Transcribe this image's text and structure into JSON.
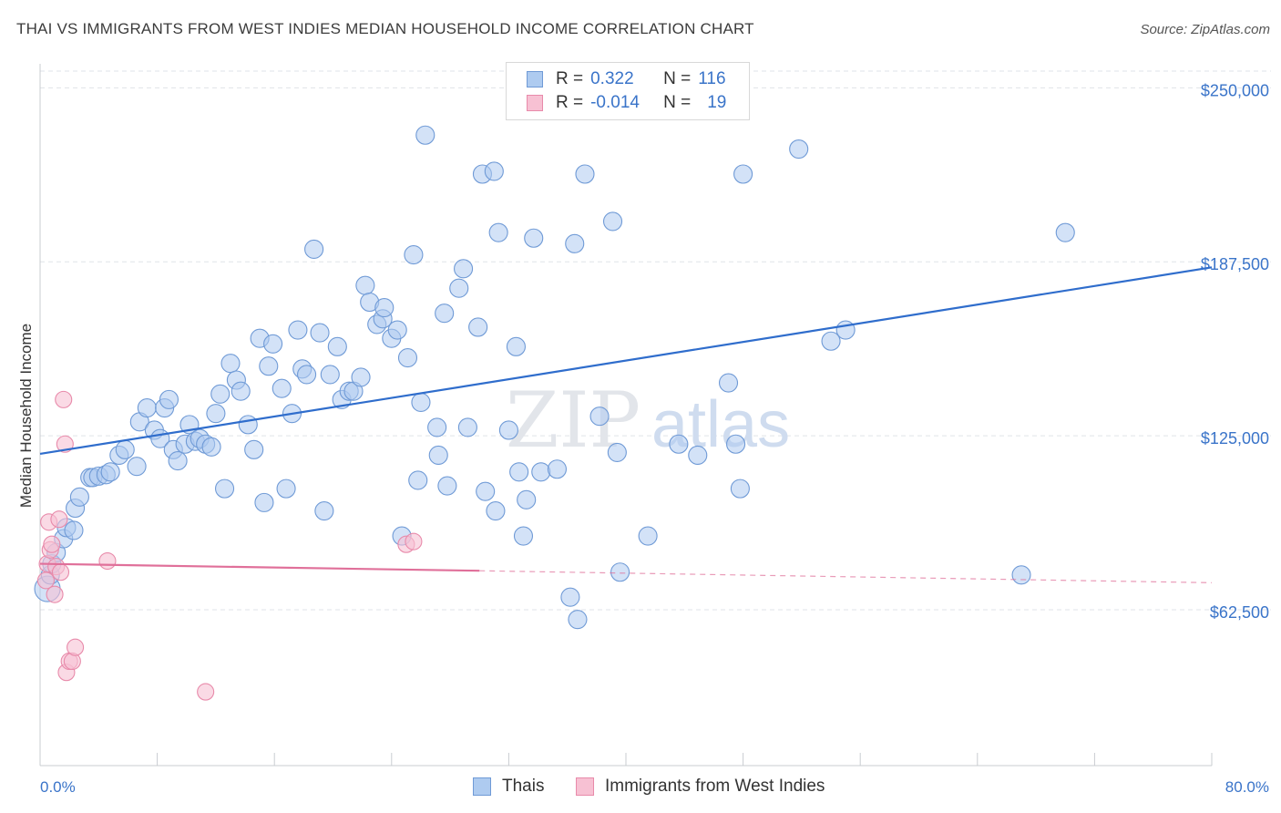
{
  "title": "THAI VS IMMIGRANTS FROM WEST INDIES MEDIAN HOUSEHOLD INCOME CORRELATION CHART",
  "source": "Source: ZipAtlas.com",
  "watermark": {
    "zip": "ZIP",
    "atlas": "atlas"
  },
  "colors": {
    "thai_fill": "#aecbf0",
    "thai_stroke": "#6f9ad6",
    "thai_line": "#2f6dcc",
    "wi_fill": "#f7c1d3",
    "wi_stroke": "#e88aaa",
    "wi_line": "#e0709a",
    "axis_label": "#3a74c9",
    "grid": "#dfe3e8"
  },
  "legend": {
    "rows": [
      {
        "r_label": "R =",
        "r_value": "0.322",
        "n_label": "N =",
        "n_value": "116"
      },
      {
        "r_label": "R =",
        "r_value": "-0.014",
        "n_label": "N =",
        "n_value": "19"
      }
    ]
  },
  "bottom_legend": {
    "thai": "Thais",
    "wi": "Immigrants from West Indies"
  },
  "chart_data": {
    "type": "scatter",
    "ylabel": "Median Household Income",
    "xlabel": "",
    "xlim": [
      0,
      80
    ],
    "ylim": [
      6500,
      256000
    ],
    "x_tick_labels": {
      "min": "0.0%",
      "max": "80.0%"
    },
    "y_ticks": [
      62500,
      125000,
      187500,
      250000
    ],
    "y_tick_labels": [
      "$62,500",
      "$125,000",
      "$187,500",
      "$250,000"
    ],
    "grid": true,
    "series": [
      {
        "name": "Thais",
        "trend": {
          "x": [
            0,
            80
          ],
          "y": [
            118500,
            185500
          ]
        },
        "points": [
          [
            0.5,
            70000
          ],
          [
            0.7,
            75000
          ],
          [
            0.8,
            79000
          ],
          [
            1.1,
            83000
          ],
          [
            1.6,
            88000
          ],
          [
            1.8,
            92000
          ],
          [
            2.3,
            91000
          ],
          [
            2.4,
            99000
          ],
          [
            2.7,
            103000
          ],
          [
            3.4,
            110000
          ],
          [
            3.6,
            110000
          ],
          [
            4.0,
            110500
          ],
          [
            4.5,
            111000
          ],
          [
            4.8,
            112000
          ],
          [
            5.4,
            118000
          ],
          [
            5.8,
            120000
          ],
          [
            6.6,
            114000
          ],
          [
            6.8,
            130000
          ],
          [
            7.3,
            135000
          ],
          [
            7.8,
            127000
          ],
          [
            8.2,
            124000
          ],
          [
            8.5,
            135000
          ],
          [
            8.8,
            138000
          ],
          [
            9.1,
            120000
          ],
          [
            9.4,
            116000
          ],
          [
            9.9,
            122000
          ],
          [
            10.2,
            129000
          ],
          [
            10.6,
            123000
          ],
          [
            10.9,
            124000
          ],
          [
            11.3,
            122000
          ],
          [
            11.7,
            121000
          ],
          [
            12.0,
            133000
          ],
          [
            12.3,
            140000
          ],
          [
            12.6,
            106000
          ],
          [
            13.0,
            151000
          ],
          [
            13.4,
            145000
          ],
          [
            13.7,
            141000
          ],
          [
            14.2,
            129000
          ],
          [
            14.6,
            120000
          ],
          [
            15.0,
            160000
          ],
          [
            15.3,
            101000
          ],
          [
            15.6,
            150000
          ],
          [
            15.9,
            158000
          ],
          [
            16.5,
            142000
          ],
          [
            16.8,
            106000
          ],
          [
            17.2,
            133000
          ],
          [
            17.6,
            163000
          ],
          [
            17.9,
            149000
          ],
          [
            18.2,
            147000
          ],
          [
            18.7,
            192000
          ],
          [
            19.1,
            162000
          ],
          [
            19.4,
            98000
          ],
          [
            19.8,
            147000
          ],
          [
            20.3,
            157000
          ],
          [
            20.6,
            138000
          ],
          [
            21.1,
            141000
          ],
          [
            21.4,
            141000
          ],
          [
            21.9,
            146000
          ],
          [
            22.2,
            179000
          ],
          [
            22.5,
            173000
          ],
          [
            23.0,
            165000
          ],
          [
            23.4,
            167000
          ],
          [
            23.5,
            171000
          ],
          [
            24.0,
            160000
          ],
          [
            24.4,
            163000
          ],
          [
            24.7,
            89000
          ],
          [
            25.1,
            153000
          ],
          [
            25.5,
            190000
          ],
          [
            25.8,
            109000
          ],
          [
            26.0,
            137000
          ],
          [
            26.3,
            233000
          ],
          [
            27.1,
            128000
          ],
          [
            27.2,
            118000
          ],
          [
            27.6,
            169000
          ],
          [
            27.8,
            107000
          ],
          [
            28.6,
            178000
          ],
          [
            28.9,
            185000
          ],
          [
            29.2,
            128000
          ],
          [
            29.9,
            164000
          ],
          [
            30.2,
            219000
          ],
          [
            30.4,
            105000
          ],
          [
            31.0,
            220000
          ],
          [
            31.1,
            98000
          ],
          [
            31.3,
            198000
          ],
          [
            32.0,
            127000
          ],
          [
            32.5,
            157000
          ],
          [
            32.7,
            112000
          ],
          [
            33.0,
            89000
          ],
          [
            33.2,
            102000
          ],
          [
            33.7,
            196000
          ],
          [
            34.2,
            112000
          ],
          [
            35.3,
            113000
          ],
          [
            36.2,
            67000
          ],
          [
            36.5,
            194000
          ],
          [
            36.7,
            59000
          ],
          [
            37.2,
            219000
          ],
          [
            38.2,
            132000
          ],
          [
            39.1,
            202000
          ],
          [
            39.4,
            119000
          ],
          [
            39.6,
            76000
          ],
          [
            41.5,
            89000
          ],
          [
            43.6,
            122000
          ],
          [
            44.9,
            118000
          ],
          [
            47.0,
            144000
          ],
          [
            47.5,
            122000
          ],
          [
            47.8,
            106000
          ],
          [
            48.0,
            219000
          ],
          [
            51.8,
            228000
          ],
          [
            54.0,
            159000
          ],
          [
            55.0,
            163000
          ],
          [
            67.0,
            75000
          ],
          [
            70.0,
            198000
          ]
        ]
      },
      {
        "name": "Immigrants from West Indies",
        "trend": {
          "x": [
            0,
            30
          ],
          "y": [
            79000,
            76500
          ]
        },
        "trend_dashed": {
          "x": [
            30,
            80
          ],
          "y": [
            76500,
            72200
          ]
        },
        "points": [
          [
            0.4,
            73000
          ],
          [
            0.5,
            79000
          ],
          [
            0.6,
            94000
          ],
          [
            0.7,
            84000
          ],
          [
            0.8,
            86000
          ],
          [
            1.0,
            68000
          ],
          [
            1.1,
            78000
          ],
          [
            1.3,
            95000
          ],
          [
            1.4,
            76000
          ],
          [
            1.6,
            138000
          ],
          [
            1.7,
            122000
          ],
          [
            1.8,
            40000
          ],
          [
            2.0,
            44000
          ],
          [
            2.2,
            44000
          ],
          [
            2.4,
            49000
          ],
          [
            4.6,
            80000
          ],
          [
            11.3,
            33000
          ],
          [
            25.0,
            86000
          ],
          [
            25.5,
            87000
          ]
        ]
      }
    ]
  }
}
